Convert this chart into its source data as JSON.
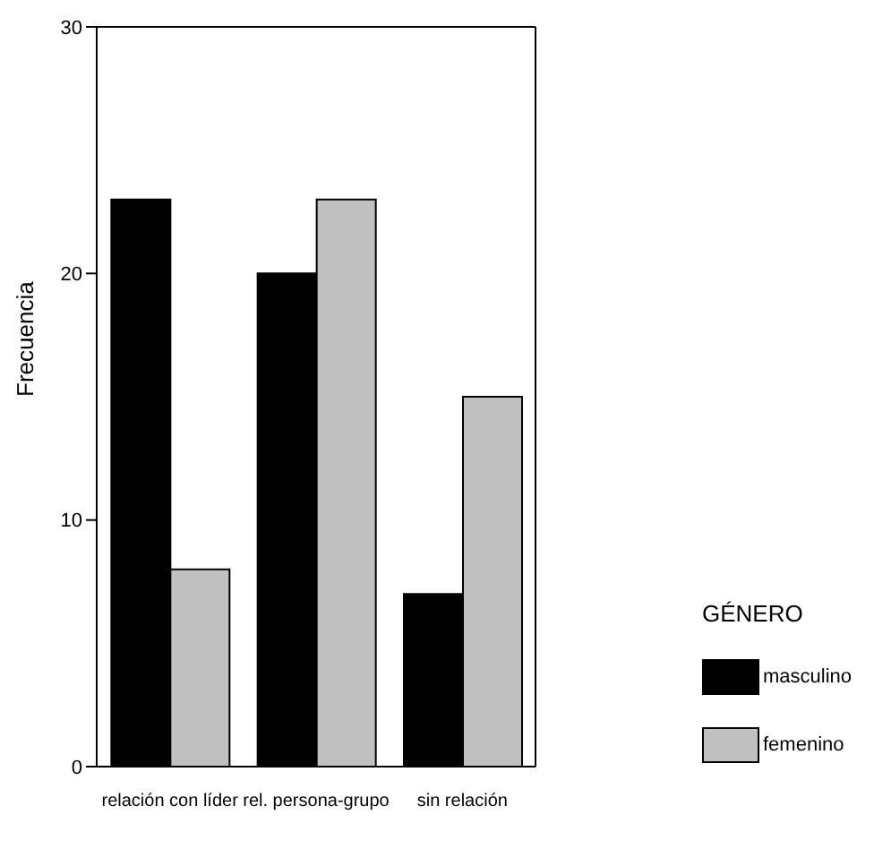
{
  "chart_data": {
    "type": "bar",
    "ylabel": "Frecuencia",
    "legend_title": "GÉNERO",
    "categories": [
      "relación con líder",
      "rel. persona-grupo",
      "sin relación"
    ],
    "series": [
      {
        "name": "masculino",
        "color": "#000000",
        "values": [
          23,
          20,
          7
        ]
      },
      {
        "name": "femenino",
        "color": "#c0c0c0",
        "values": [
          8,
          23,
          15
        ]
      }
    ],
    "ylim": [
      0,
      30
    ],
    "yticks": [
      0,
      10,
      20,
      30
    ],
    "legend": "right"
  }
}
